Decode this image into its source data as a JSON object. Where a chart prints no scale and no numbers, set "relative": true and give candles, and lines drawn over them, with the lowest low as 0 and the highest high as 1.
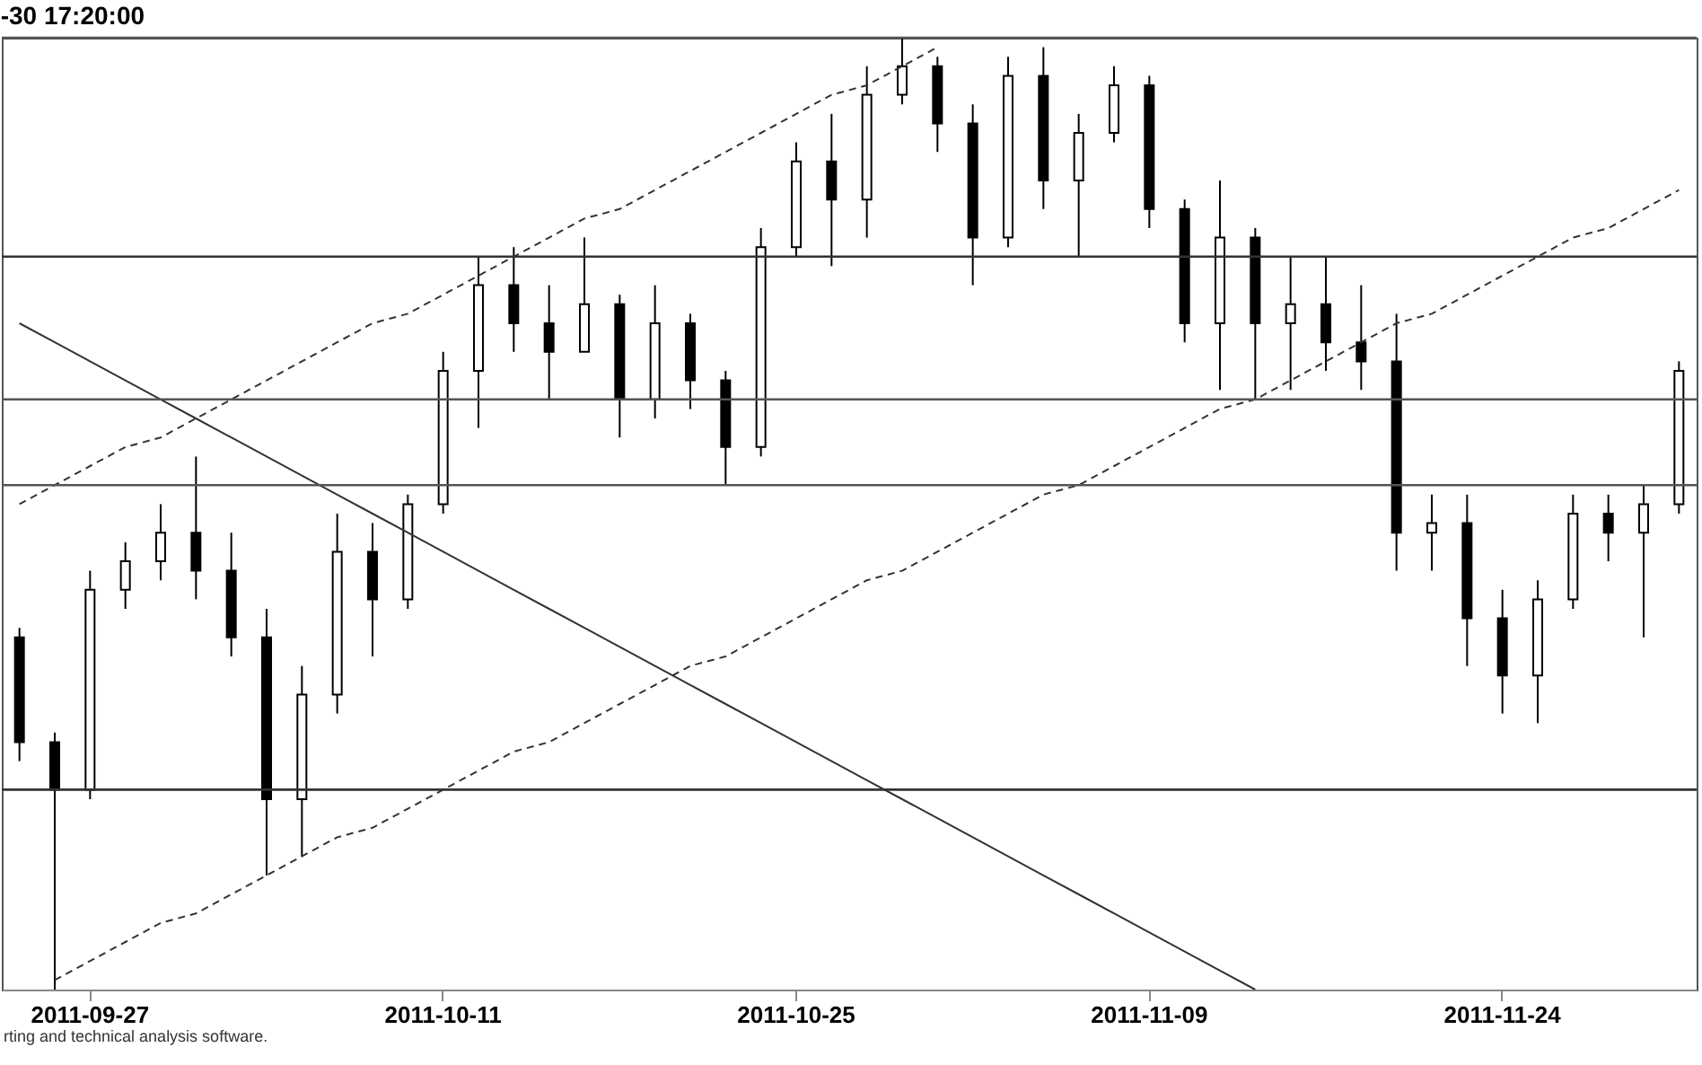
{
  "chart_data": {
    "type": "candlestick",
    "title": "-30 17:20:00",
    "relative": true,
    "color": "#000000",
    "categories": [
      null,
      null,
      "2011-09-27",
      null,
      null,
      null,
      null,
      null,
      null,
      null,
      null,
      null,
      "2011-10-11",
      null,
      null,
      null,
      null,
      null,
      null,
      null,
      null,
      null,
      "2011-10-25",
      null,
      null,
      null,
      null,
      null,
      null,
      null,
      null,
      null,
      "2011-11-09",
      null,
      null,
      null,
      null,
      null,
      null,
      null,
      null,
      null,
      "2011-11-24",
      null,
      null,
      null,
      null,
      null
    ],
    "ohlc": [
      [
        0.37,
        0.38,
        0.24,
        0.26
      ],
      [
        0.26,
        0.27,
        0,
        0.21
      ],
      [
        0.21,
        0.44,
        0.2,
        0.42
      ],
      [
        0.42,
        0.47,
        0.4,
        0.45
      ],
      [
        0.45,
        0.51,
        0.43,
        0.48
      ],
      [
        0.48,
        0.56,
        0.41,
        0.44
      ],
      [
        0.44,
        0.48,
        0.35,
        0.37
      ],
      [
        0.37,
        0.4,
        0.12,
        0.2
      ],
      [
        0.2,
        0.34,
        0.14,
        0.31
      ],
      [
        0.31,
        0.5,
        0.29,
        0.46
      ],
      [
        0.46,
        0.49,
        0.35,
        0.41
      ],
      [
        0.41,
        0.52,
        0.4,
        0.51
      ],
      [
        0.51,
        0.67,
        0.5,
        0.65
      ],
      [
        0.65,
        0.77,
        0.59,
        0.74
      ],
      [
        0.74,
        0.78,
        0.67,
        0.7
      ],
      [
        0.7,
        0.74,
        0.62,
        0.67
      ],
      [
        0.67,
        0.79,
        0.67,
        0.72
      ],
      [
        0.72,
        0.73,
        0.58,
        0.62
      ],
      [
        0.62,
        0.74,
        0.6,
        0.7
      ],
      [
        0.7,
        0.71,
        0.61,
        0.64
      ],
      [
        0.64,
        0.65,
        0.53,
        0.57
      ],
      [
        0.57,
        0.8,
        0.56,
        0.78
      ],
      [
        0.78,
        0.89,
        0.77,
        0.87
      ],
      [
        0.87,
        0.92,
        0.76,
        0.83
      ],
      [
        0.83,
        0.97,
        0.79,
        0.94
      ],
      [
        0.94,
        1,
        0.93,
        0.97
      ],
      [
        0.97,
        0.98,
        0.88,
        0.91
      ],
      [
        0.91,
        0.93,
        0.74,
        0.79
      ],
      [
        0.79,
        0.98,
        0.78,
        0.96
      ],
      [
        0.96,
        0.99,
        0.82,
        0.85
      ],
      [
        0.85,
        0.92,
        0.77,
        0.9
      ],
      [
        0.9,
        0.97,
        0.89,
        0.95
      ],
      [
        0.95,
        0.96,
        0.8,
        0.82
      ],
      [
        0.82,
        0.83,
        0.68,
        0.7
      ],
      [
        0.7,
        0.85,
        0.63,
        0.79
      ],
      [
        0.79,
        0.8,
        0.62,
        0.7
      ],
      [
        0.7,
        0.77,
        0.63,
        0.72
      ],
      [
        0.72,
        0.77,
        0.65,
        0.68
      ],
      [
        0.68,
        0.74,
        0.63,
        0.66
      ],
      [
        0.66,
        0.71,
        0.44,
        0.48
      ],
      [
        0.48,
        0.52,
        0.44,
        0.49
      ],
      [
        0.49,
        0.52,
        0.34,
        0.39
      ],
      [
        0.39,
        0.42,
        0.29,
        0.33
      ],
      [
        0.33,
        0.43,
        0.28,
        0.41
      ],
      [
        0.41,
        0.52,
        0.4,
        0.5
      ],
      [
        0.5,
        0.52,
        0.45,
        0.48
      ],
      [
        0.48,
        0.53,
        0.37,
        0.51
      ],
      [
        0.51,
        0.66,
        0.5,
        0.65
      ]
    ],
    "series": [
      {
        "type": "line",
        "color": "#333333",
        "line_style": "dashed",
        "values": [
          null,
          0.01,
          0.03,
          0.05,
          0.07,
          0.08,
          0.1,
          0.12,
          0.14,
          0.16,
          0.17,
          0.19,
          0.21,
          0.23,
          0.25,
          0.26,
          0.28,
          0.3,
          0.32,
          0.34,
          0.35,
          0.37,
          0.39,
          0.41,
          0.43,
          0.44,
          0.46,
          0.48,
          0.5,
          0.52,
          0.53,
          0.55,
          0.57,
          0.59,
          0.61,
          0.62,
          0.64,
          0.66,
          0.68,
          0.7,
          0.71,
          0.73,
          0.75,
          0.77,
          0.79,
          0.8,
          0.82,
          0.84
        ]
      },
      {
        "type": "line",
        "color": "#333333",
        "line_style": "dashed",
        "values": [
          0.51,
          0.53,
          0.55,
          0.57,
          0.58,
          0.6,
          0.62,
          0.64,
          0.66,
          0.68,
          0.7,
          0.71,
          0.73,
          0.75,
          0.77,
          0.79,
          0.81,
          0.82,
          0.84,
          0.86,
          0.88,
          0.9,
          0.92,
          0.94,
          0.95,
          0.97,
          0.99,
          null,
          null,
          null,
          null,
          null,
          null,
          null,
          null,
          null,
          null,
          null,
          null,
          null,
          null,
          null,
          null,
          null,
          null,
          null,
          null,
          null
        ]
      },
      {
        "type": "line",
        "color": "#333333",
        "line_style": "solid",
        "values": [
          0.7,
          0.68,
          0.66,
          0.64,
          0.62,
          0.6,
          0.58,
          0.56,
          0.54,
          0.52,
          0.5,
          0.48,
          0.46,
          0.44,
          0.42,
          0.4,
          0.38,
          0.36,
          0.34,
          0.32,
          0.3,
          0.28,
          0.26,
          0.24,
          0.22,
          0.2,
          0.18,
          0.16,
          0.14,
          0.12,
          0.1,
          0.08,
          0.06,
          0.04,
          0.02,
          0,
          null,
          null,
          null,
          null,
          null,
          null,
          null,
          null,
          null,
          null,
          null,
          null
        ]
      }
    ],
    "ref_lines": [
      {
        "axis": "y",
        "value": 1,
        "color": "#555555"
      },
      {
        "axis": "y",
        "value": 0.77,
        "color": "#333333"
      },
      {
        "axis": "y",
        "value": 0.62,
        "color": "#555555"
      },
      {
        "axis": "y",
        "value": 0.53,
        "color": "#555555"
      },
      {
        "axis": "y",
        "value": 0.21,
        "color": "#333333"
      }
    ],
    "annotations": [
      "rting and technical analysis software."
    ]
  }
}
